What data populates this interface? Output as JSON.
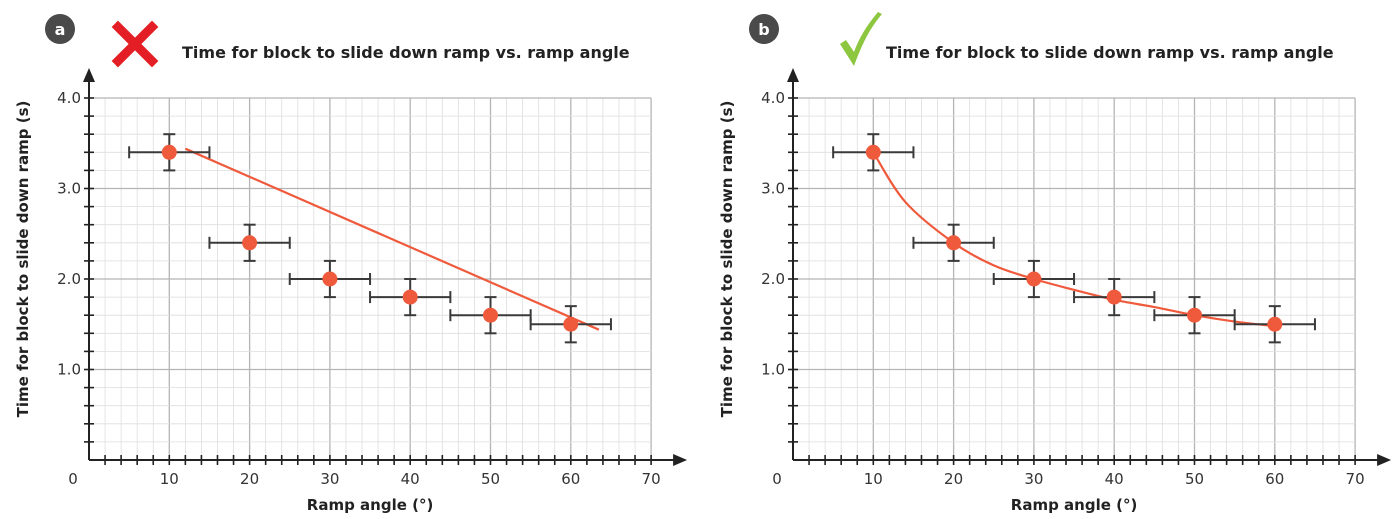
{
  "chart_data": [
    {
      "type": "scatter",
      "panel_label": "a",
      "verdict_icon": "cross-icon",
      "verdict_color": "#e31e24",
      "title": "Time for block to slide down ramp vs. ramp angle",
      "xlabel": "Ramp angle (°)",
      "ylabel": "Time for block to slide down ramp (s)",
      "xlim": [
        0,
        70
      ],
      "ylim": [
        0,
        4
      ],
      "xticks": [
        0,
        10,
        20,
        30,
        40,
        50,
        60,
        70
      ],
      "yticks": [
        1.0,
        2.0,
        3.0,
        4.0
      ],
      "ytick_labels": [
        "1.0",
        "2.0",
        "3.0",
        "4.0"
      ],
      "grid": true,
      "marker_color": "#f05a3c",
      "x_error": 5,
      "y_error": 0.2,
      "series": [
        {
          "x": [
            10,
            20,
            30,
            40,
            50,
            60
          ],
          "y": [
            3.4,
            2.4,
            2.0,
            1.8,
            1.6,
            1.5
          ]
        }
      ],
      "fit": {
        "kind": "linear",
        "color": "#f05a3c",
        "points": [
          [
            12,
            3.44
          ],
          [
            63.5,
            1.44
          ]
        ]
      }
    },
    {
      "type": "scatter",
      "panel_label": "b",
      "verdict_icon": "check-icon",
      "verdict_color": "#8dc63f",
      "title": "Time for block to slide down ramp vs. ramp angle",
      "xlabel": "Ramp angle (°)",
      "ylabel": "Time for block to slide down ramp (s)",
      "xlim": [
        0,
        70
      ],
      "ylim": [
        0,
        4
      ],
      "xticks": [
        0,
        10,
        20,
        30,
        40,
        50,
        60,
        70
      ],
      "yticks": [
        1.0,
        2.0,
        3.0,
        4.0
      ],
      "ytick_labels": [
        "1.0",
        "2.0",
        "3.0",
        "4.0"
      ],
      "grid": true,
      "marker_color": "#f05a3c",
      "x_error": 5,
      "y_error": 0.2,
      "series": [
        {
          "x": [
            10,
            20,
            30,
            40,
            50,
            60
          ],
          "y": [
            3.4,
            2.4,
            2.0,
            1.8,
            1.6,
            1.5
          ]
        }
      ],
      "fit": {
        "kind": "curve",
        "color": "#f05a3c",
        "points": [
          [
            10,
            3.4
          ],
          [
            14,
            2.85
          ],
          [
            20,
            2.4
          ],
          [
            25,
            2.15
          ],
          [
            30,
            2.0
          ],
          [
            35,
            1.88
          ],
          [
            40,
            1.77
          ],
          [
            45,
            1.69
          ],
          [
            50,
            1.6
          ],
          [
            55,
            1.53
          ],
          [
            60,
            1.48
          ]
        ]
      }
    }
  ]
}
